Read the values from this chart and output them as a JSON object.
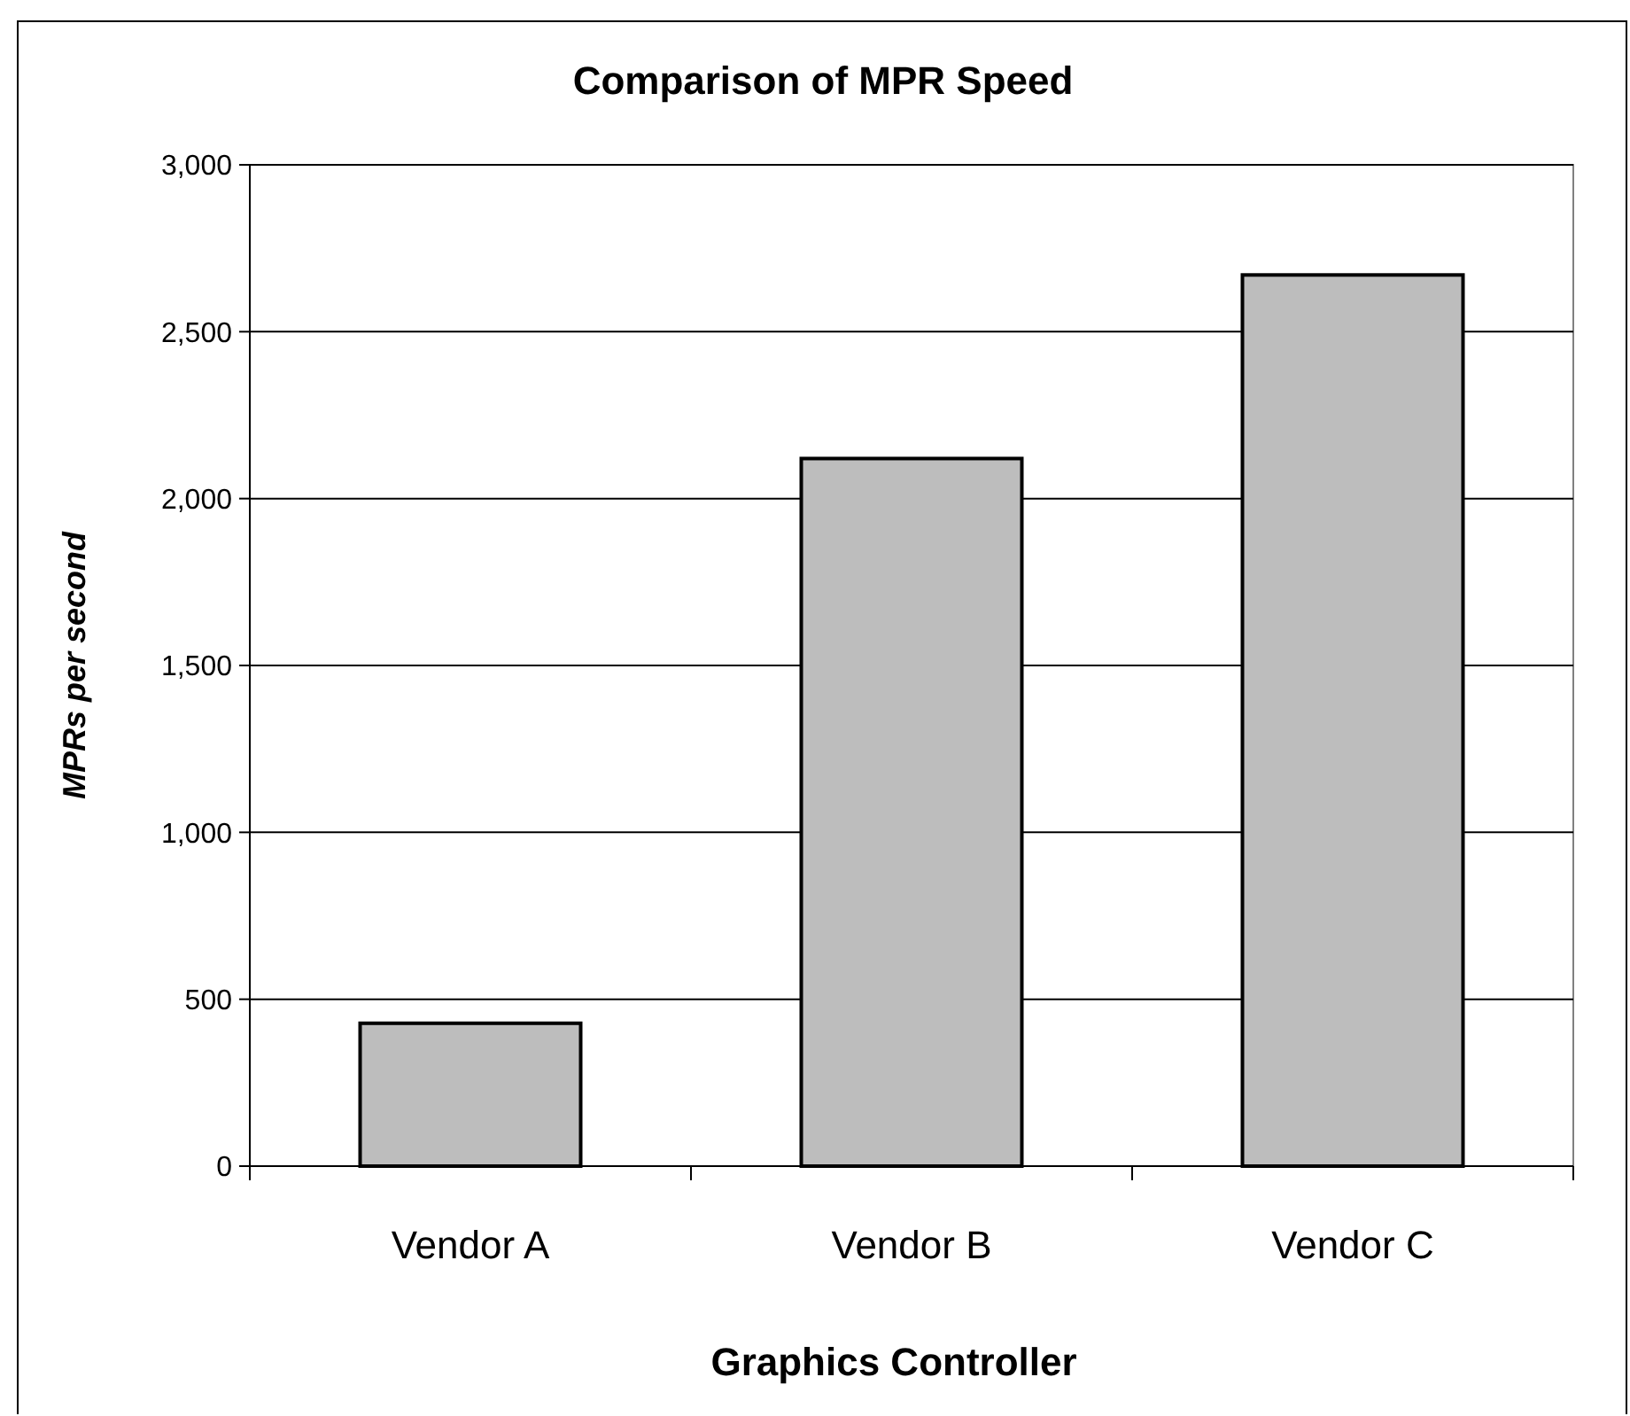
{
  "chart_data": {
    "type": "bar",
    "title": "Comparison of MPR Speed",
    "xlabel": "Graphics Controller",
    "ylabel": "MPRs per second",
    "categories": [
      "Vendor A",
      "Vendor B",
      "Vendor C"
    ],
    "values": [
      428,
      2120,
      2670
    ],
    "color": "#bdbdbd",
    "ylim": [
      0,
      3000
    ],
    "yticks": [
      {
        "value": 0,
        "label": "0"
      },
      {
        "value": 500,
        "label": "500"
      },
      {
        "value": 1000,
        "label": "1,000"
      },
      {
        "value": 1500,
        "label": "1,500"
      },
      {
        "value": 2000,
        "label": "2,000"
      },
      {
        "value": 2500,
        "label": "2,500"
      },
      {
        "value": 3000,
        "label": "3,000"
      }
    ],
    "grid": "y"
  }
}
